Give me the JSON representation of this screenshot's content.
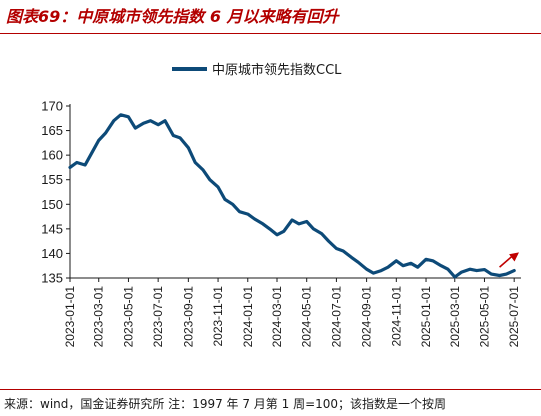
{
  "title": "图表69：中原城市领先指数 6 月以来略有回升",
  "source": "来源：wind，国金证券研究所 注：1997 年 7 月第 1 周=100；该指数是一个按周",
  "colors": {
    "title": "#b30000",
    "series": "#0d4a78",
    "arrow": "#c00000",
    "axis": "#1a1a1a"
  },
  "chart_data": {
    "type": "line",
    "title": "",
    "xlabel": "",
    "ylabel": "",
    "ylim": [
      135,
      170
    ],
    "yticks": [
      135,
      140,
      145,
      150,
      155,
      160,
      165,
      170
    ],
    "xtick_labels": [
      "2023-01-01",
      "2023-03-01",
      "2023-05-01",
      "2023-07-01",
      "2023-09-01",
      "2023-11-01",
      "2024-01-01",
      "2024-03-01",
      "2024-05-01",
      "2024-07-01",
      "2024-09-01",
      "2024-11-01",
      "2025-01-01",
      "2025-03-01",
      "2025-05-01",
      "2025-07-01"
    ],
    "xlim": [
      "2023-01-01",
      "2025-07-15"
    ],
    "legend": "top-center",
    "grid": false,
    "annotation": "red arrow indicating uptrend at end of series",
    "series": [
      {
        "name": "中原城市领先指数CCL",
        "points": [
          [
            "2023-01-01",
            157.5
          ],
          [
            "2023-01-15",
            158.5
          ],
          [
            "2023-02-01",
            158.0
          ],
          [
            "2023-02-15",
            160.5
          ],
          [
            "2023-03-01",
            163.0
          ],
          [
            "2023-03-15",
            164.5
          ],
          [
            "2023-04-01",
            167.0
          ],
          [
            "2023-04-15",
            168.2
          ],
          [
            "2023-05-01",
            167.8
          ],
          [
            "2023-05-15",
            165.5
          ],
          [
            "2023-06-01",
            166.5
          ],
          [
            "2023-06-15",
            167.0
          ],
          [
            "2023-07-01",
            166.2
          ],
          [
            "2023-07-15",
            167.0
          ],
          [
            "2023-08-01",
            164.0
          ],
          [
            "2023-08-15",
            163.5
          ],
          [
            "2023-09-01",
            161.5
          ],
          [
            "2023-09-15",
            158.5
          ],
          [
            "2023-10-01",
            157.0
          ],
          [
            "2023-10-15",
            155.0
          ],
          [
            "2023-11-01",
            153.5
          ],
          [
            "2023-11-15",
            151.0
          ],
          [
            "2023-12-01",
            150.0
          ],
          [
            "2023-12-15",
            148.5
          ],
          [
            "2024-01-01",
            148.0
          ],
          [
            "2024-01-15",
            147.0
          ],
          [
            "2024-02-01",
            146.0
          ],
          [
            "2024-02-15",
            145.0
          ],
          [
            "2024-03-01",
            143.8
          ],
          [
            "2024-03-15",
            144.5
          ],
          [
            "2024-04-01",
            146.8
          ],
          [
            "2024-04-15",
            146.0
          ],
          [
            "2024-05-01",
            146.5
          ],
          [
            "2024-05-15",
            145.0
          ],
          [
            "2024-06-01",
            144.0
          ],
          [
            "2024-06-15",
            142.5
          ],
          [
            "2024-07-01",
            141.0
          ],
          [
            "2024-07-15",
            140.5
          ],
          [
            "2024-08-01",
            139.2
          ],
          [
            "2024-08-15",
            138.2
          ],
          [
            "2024-09-01",
            136.8
          ],
          [
            "2024-09-15",
            136.0
          ],
          [
            "2024-10-01",
            136.5
          ],
          [
            "2024-10-15",
            137.2
          ],
          [
            "2024-11-01",
            138.5
          ],
          [
            "2024-11-15",
            137.5
          ],
          [
            "2024-12-01",
            138.0
          ],
          [
            "2024-12-15",
            137.2
          ],
          [
            "2025-01-01",
            138.8
          ],
          [
            "2025-01-15",
            138.5
          ],
          [
            "2025-02-01",
            137.5
          ],
          [
            "2025-02-15",
            136.8
          ],
          [
            "2025-03-01",
            135.2
          ],
          [
            "2025-03-15",
            136.2
          ],
          [
            "2025-04-01",
            136.8
          ],
          [
            "2025-04-15",
            136.5
          ],
          [
            "2025-05-01",
            136.7
          ],
          [
            "2025-05-15",
            135.8
          ],
          [
            "2025-06-01",
            135.5
          ],
          [
            "2025-06-15",
            135.8
          ],
          [
            "2025-07-01",
            136.5
          ]
        ]
      }
    ]
  }
}
